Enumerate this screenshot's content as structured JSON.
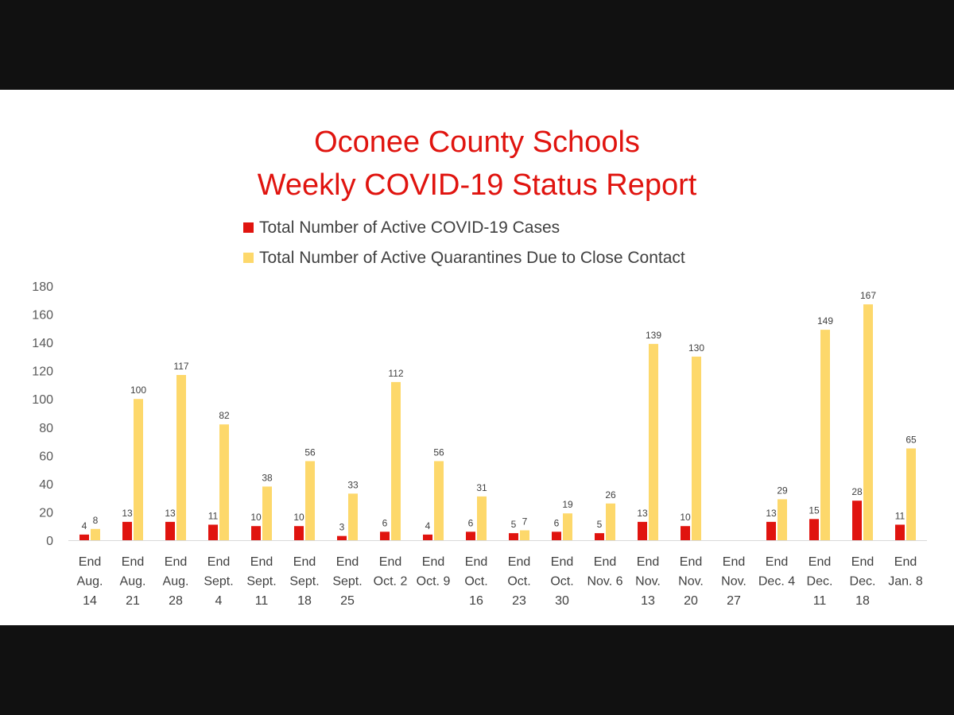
{
  "chart_data": {
    "type": "bar",
    "title": [
      "Oconee County Schools",
      "Weekly COVID-19 Status Report"
    ],
    "legend_position": "top",
    "categories": [
      [
        "End",
        "Aug.",
        "14"
      ],
      [
        "End",
        "Aug.",
        "21"
      ],
      [
        "End",
        "Aug.",
        "28"
      ],
      [
        "End",
        "Sept.",
        "4"
      ],
      [
        "End",
        "Sept.",
        "11"
      ],
      [
        "End",
        "Sept.",
        "18"
      ],
      [
        "End",
        "Sept.",
        "25"
      ],
      [
        "End",
        "Oct. 2"
      ],
      [
        "End",
        "Oct. 9"
      ],
      [
        "End",
        "Oct.",
        "16"
      ],
      [
        "End",
        "Oct.",
        "23"
      ],
      [
        "End",
        "Oct.",
        "30"
      ],
      [
        "End",
        "Nov. 6"
      ],
      [
        "End",
        "Nov.",
        "13"
      ],
      [
        "End",
        "Nov.",
        "20"
      ],
      [
        "End",
        "Nov.",
        "27"
      ],
      [
        "End",
        "Dec. 4"
      ],
      [
        "End",
        "Dec.",
        "11"
      ],
      [
        "End",
        "Dec.",
        "18"
      ],
      [
        "End",
        "Jan. 8"
      ]
    ],
    "series": [
      {
        "name": "Total Number of Active COVID-19 Cases",
        "color": "#e0140f",
        "values": [
          4,
          13,
          13,
          11,
          10,
          10,
          3,
          6,
          4,
          6,
          5,
          6,
          5,
          13,
          10,
          null,
          13,
          15,
          28,
          11
        ]
      },
      {
        "name": "Total Number of Active Quarantines Due to Close Contact",
        "color": "#fdd86b",
        "values": [
          8,
          100,
          117,
          82,
          38,
          56,
          33,
          112,
          56,
          31,
          7,
          19,
          26,
          139,
          130,
          null,
          29,
          149,
          167,
          65
        ]
      }
    ],
    "ylim": [
      0,
      180
    ],
    "yticks": [
      0,
      20,
      40,
      60,
      80,
      100,
      120,
      140,
      160,
      180
    ],
    "grid": false,
    "xlabel": "",
    "ylabel": ""
  }
}
